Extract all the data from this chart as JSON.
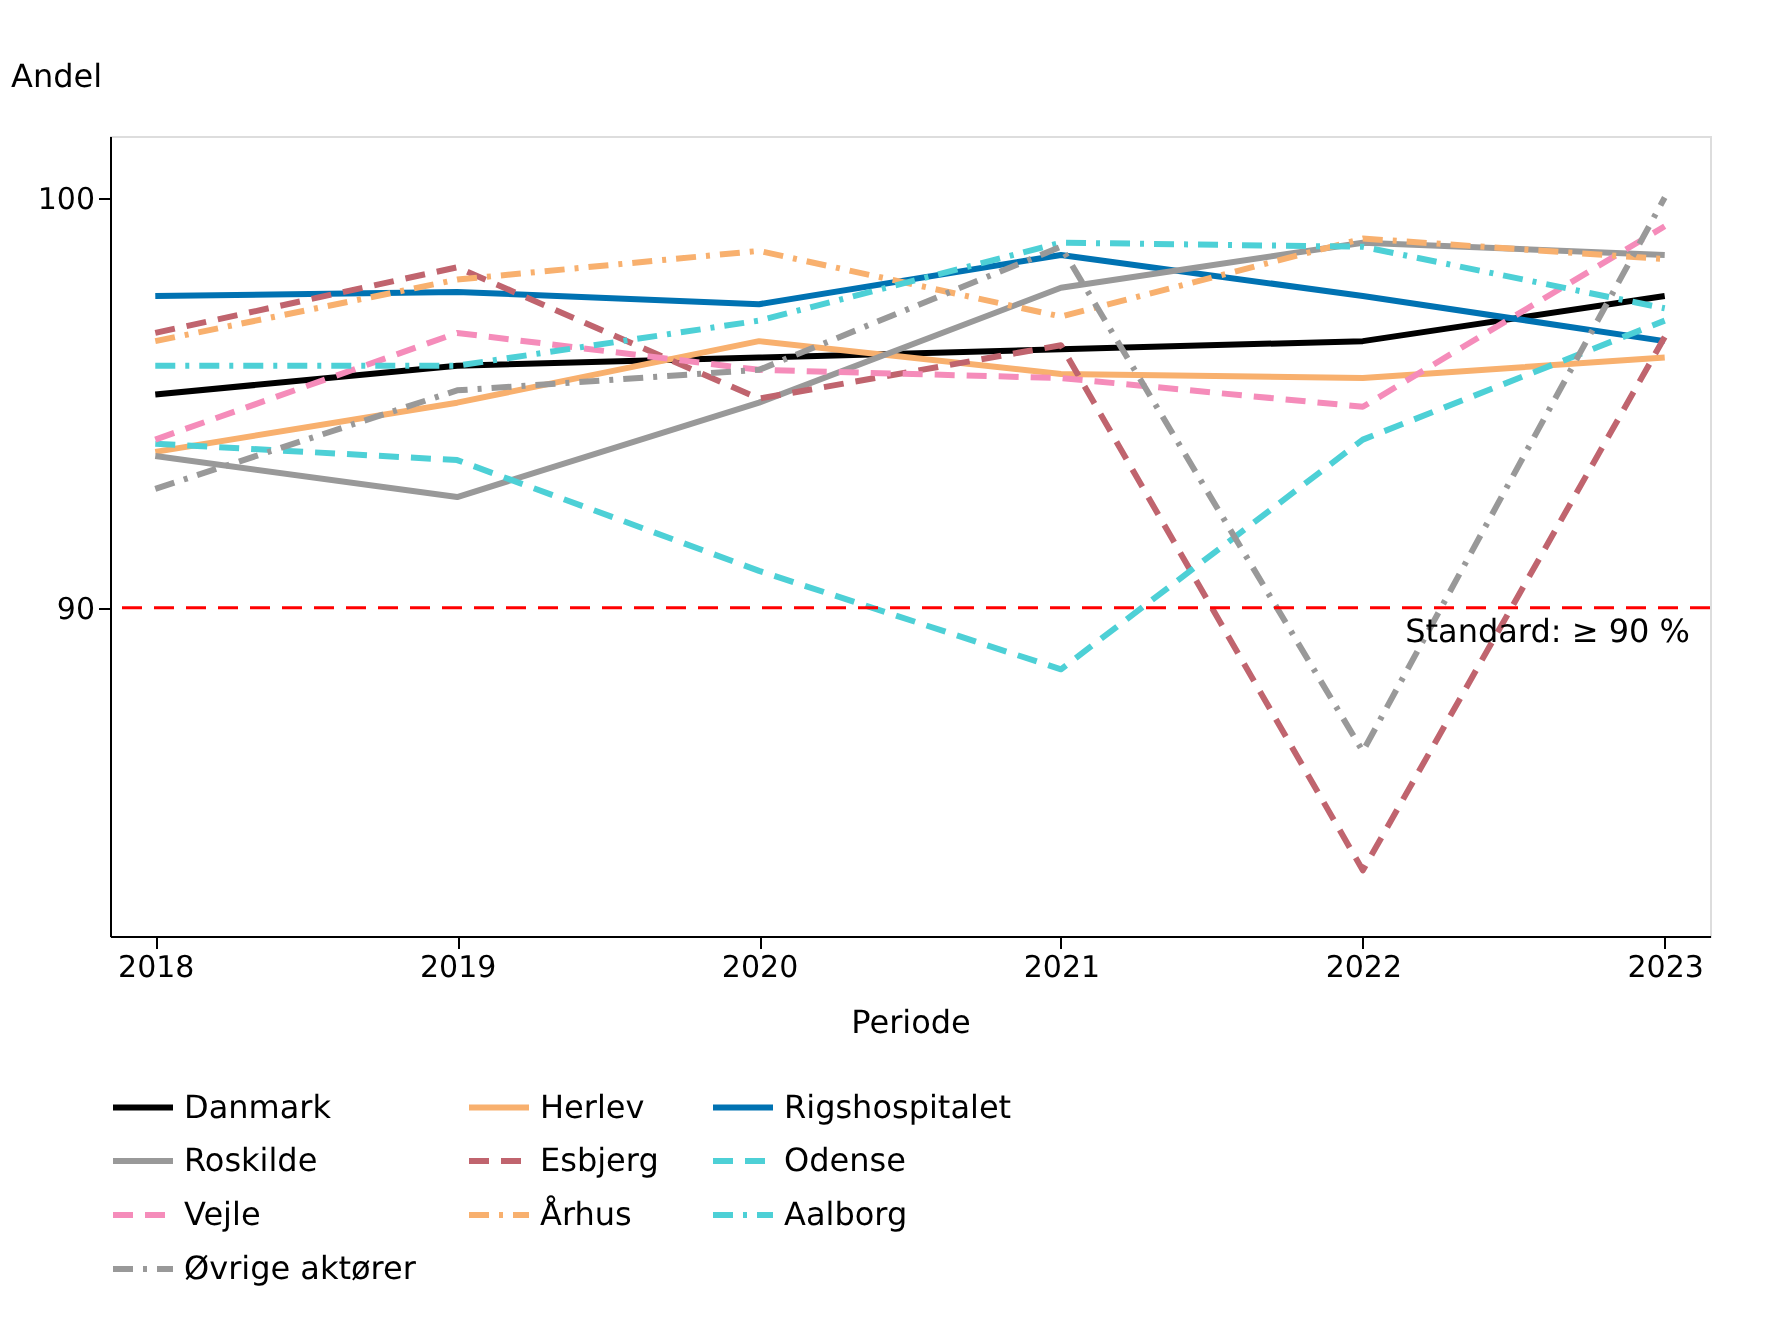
{
  "chart_data": {
    "type": "line",
    "xlabel": "Periode",
    "ylabel": "Andel",
    "x": [
      2018,
      2019,
      2020,
      2021,
      2022,
      2023
    ],
    "xlim": [
      2017.85,
      2023.15
    ],
    "xticks": [
      2018,
      2019,
      2020,
      2021,
      2022,
      2023
    ],
    "ylim": [
      82,
      101.5
    ],
    "yticks": [
      90,
      100
    ],
    "grid": false,
    "legend": "bottom",
    "marker": "none",
    "series": [
      {
        "name": "Danmark",
        "color": "#000000",
        "line_style": "solid",
        "values": [
          95.2,
          95.9,
          96.1,
          96.3,
          96.5,
          97.6
        ]
      },
      {
        "name": "Herlev",
        "color": "#f8b06e",
        "line_style": "solid",
        "values": [
          93.8,
          95.0,
          96.5,
          95.7,
          95.6,
          96.1
        ]
      },
      {
        "name": "Rigshospitalet",
        "color": "#0072b2",
        "line_style": "solid",
        "values": [
          97.6,
          97.7,
          97.4,
          98.6,
          97.6,
          96.5
        ]
      },
      {
        "name": "Roskilde",
        "color": "#999999",
        "line_style": "solid",
        "values": [
          93.7,
          92.7,
          95.0,
          97.8,
          98.9,
          98.6
        ]
      },
      {
        "name": "Esbjerg",
        "color": "#c0646e",
        "line_style": "dashed",
        "values": [
          96.7,
          98.3,
          95.1,
          96.4,
          83.6,
          96.6
        ]
      },
      {
        "name": "Odense",
        "color": "#4dd0d6",
        "line_style": "dashed",
        "values": [
          94.0,
          93.6,
          90.9,
          88.5,
          94.1,
          97.0
        ]
      },
      {
        "name": "Vejle",
        "color": "#f58cba",
        "line_style": "dashed",
        "values": [
          94.1,
          96.7,
          95.8,
          95.6,
          94.9,
          99.3
        ]
      },
      {
        "name": "Århus",
        "color": "#f8b06e",
        "line_style": "dashdot",
        "values": [
          96.5,
          98.0,
          98.7,
          97.1,
          99.0,
          98.5
        ]
      },
      {
        "name": "Aalborg",
        "color": "#4dd0d6",
        "line_style": "dashdot",
        "values": [
          95.9,
          95.9,
          97.0,
          98.9,
          98.8,
          97.3
        ]
      },
      {
        "name": "Øvrige aktører",
        "color": "#999999",
        "line_style": "dashdot",
        "values": [
          92.9,
          95.3,
          95.8,
          98.8,
          86.5,
          100.0
        ]
      }
    ],
    "ref_lines": [
      {
        "axis": "y",
        "value": 90,
        "label": "Standard: ≥ 90 %",
        "color": "#ff0000",
        "line_style": "dashed"
      }
    ]
  }
}
